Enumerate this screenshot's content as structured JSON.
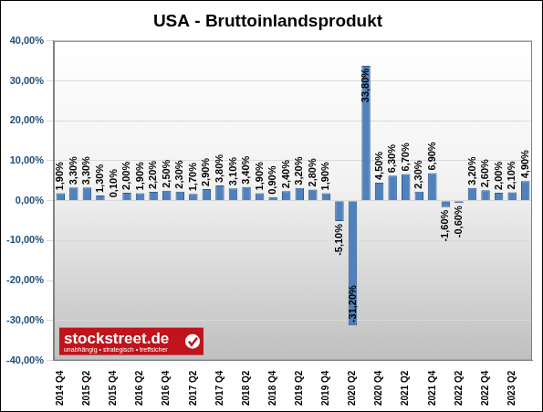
{
  "chart_data": {
    "type": "bar",
    "title": "USA - Bruttoinlandsprodukt",
    "categories": [
      "2014 Q4",
      null,
      "2015 Q2",
      null,
      "2015 Q4",
      null,
      "2016 Q2",
      null,
      "2016 Q4",
      null,
      "2017 Q2",
      null,
      "2017 Q4",
      null,
      "2018 Q2",
      null,
      "2018 Q4",
      null,
      "2019 Q2",
      null,
      "2019 Q4",
      null,
      "2020 Q2",
      null,
      "2020 Q4",
      null,
      "2021 Q2",
      null,
      "2021 Q4",
      null,
      "2022 Q2",
      null,
      "2022 Q4",
      null,
      "2023 Q2",
      null
    ],
    "values": [
      1.9,
      3.3,
      3.3,
      1.3,
      0.1,
      2.0,
      1.9,
      2.2,
      2.5,
      2.3,
      1.7,
      2.9,
      3.8,
      3.1,
      3.4,
      1.9,
      0.9,
      2.4,
      3.2,
      2.8,
      1.9,
      -5.1,
      -31.2,
      33.8,
      4.5,
      6.3,
      6.7,
      2.3,
      6.9,
      -1.6,
      -0.6,
      3.2,
      2.6,
      2.0,
      2.1,
      4.9
    ],
    "value_labels": [
      "1,90%",
      "3,30%",
      "3,30%",
      "1,30%",
      "0,10%",
      "2,00%",
      "1,90%",
      "2,20%",
      "2,50%",
      "2,30%",
      "1,70%",
      "2,90%",
      "3,80%",
      "3,10%",
      "3,40%",
      "1,90%",
      "0,90%",
      "2,40%",
      "3,20%",
      "2,80%",
      "1,90%",
      "-5,10%",
      "-31,20%",
      "33,80%",
      "4,50%",
      "6,30%",
      "6,70%",
      "2,30%",
      "6,90%",
      "-1,60%",
      "-0,60%",
      "3,20%",
      "2,60%",
      "2,00%",
      "2,10%",
      "4,90%"
    ],
    "color": "#4f81bd",
    "ylim": [
      -40,
      40
    ],
    "yticks": [
      {
        "value": -40,
        "label": "-40,00%"
      },
      {
        "value": -30,
        "label": "-30,00%"
      },
      {
        "value": -20,
        "label": "-20,00%"
      },
      {
        "value": -10,
        "label": "-10,00%"
      },
      {
        "value": 0,
        "label": "0,00%"
      },
      {
        "value": 10,
        "label": "10,00%"
      },
      {
        "value": 20,
        "label": "20,00%"
      },
      {
        "value": 30,
        "label": "30,00%"
      },
      {
        "value": 40,
        "label": "40,00%"
      }
    ],
    "grid": true,
    "data_labels": true,
    "annotations": [
      "stockstreet.de",
      "unabhängig • strategisch • treffsicher"
    ]
  }
}
